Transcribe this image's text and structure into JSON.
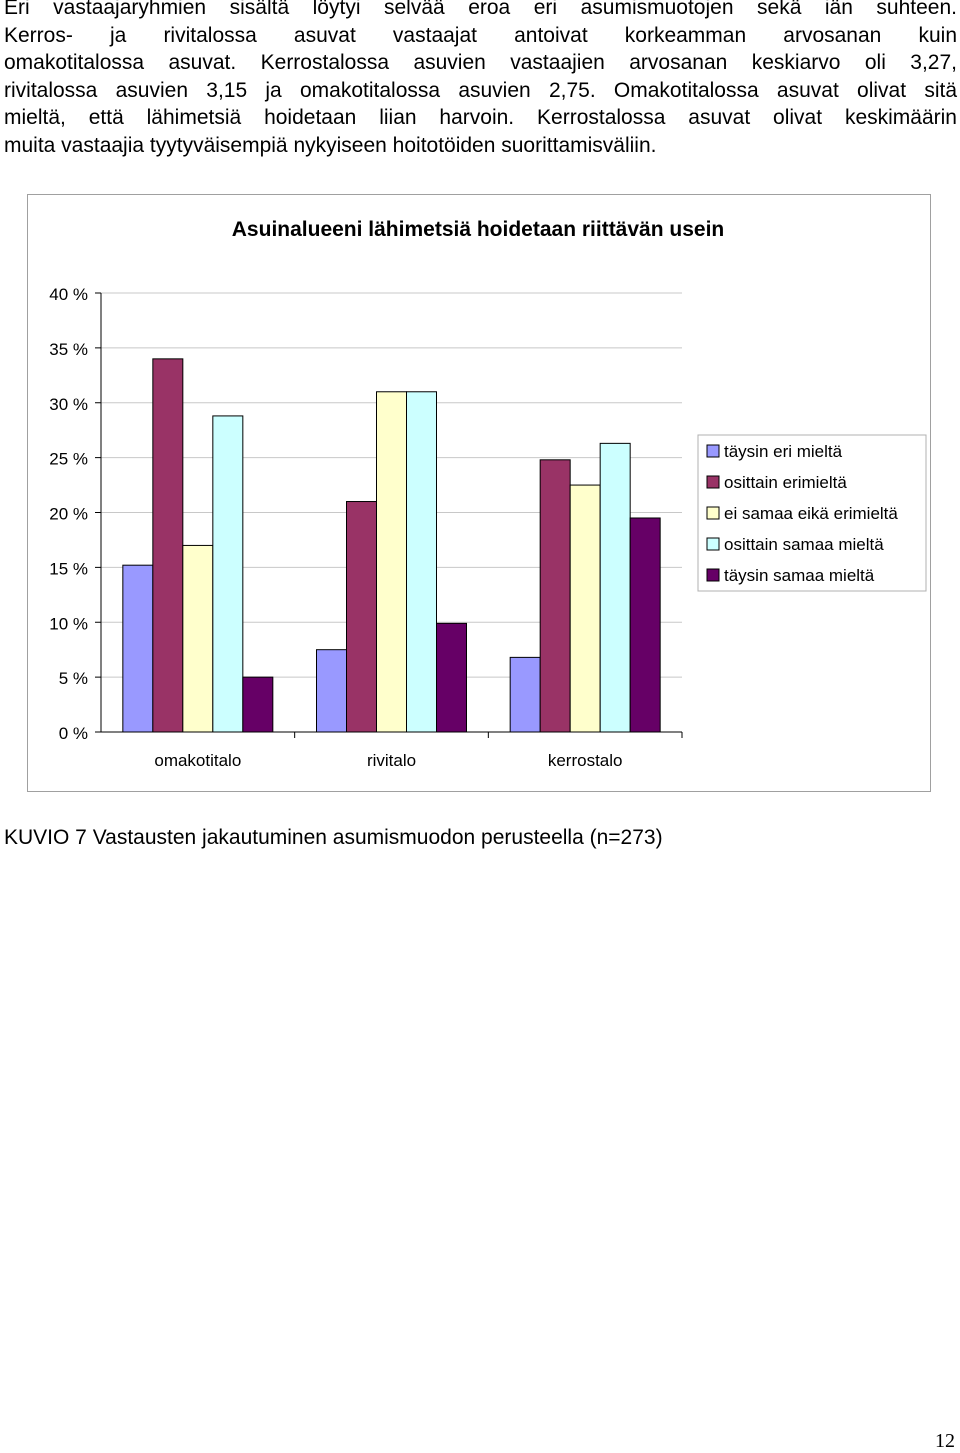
{
  "document": {
    "paragraph_lines": [
      "Eri vastaajaryhmien sisältä löytyi selvää eroa eri asumismuotojen sekä iän suhteen.",
      "Kerros- ja rivitalossa asuvat vastaajat antoivat korkeamman arvosanan kuin",
      "omakotitalossa asuvat. Kerrostalossa asuvien vastaajien arvosanan keskiarvo oli 3,27,",
      "rivitalossa asuvien 3,15 ja omakotitalossa asuvien 2,75. Omakotitalossa asuvat olivat sitä",
      "mieltä, että lähimetsiä hoidetaan liian harvoin. Kerrostalossa asuvat olivat keskimäärin",
      "muita vastaajia tyytyväisempiä nykyiseen hoitotöiden suorittamisväliin."
    ],
    "caption": "KUVIO 7 Vastausten jakautuminen asumismuodon perusteella (n=273)",
    "page_number": "12"
  },
  "chart_data": {
    "type": "bar",
    "title": "Asuinalueeni lähimetsiä hoidetaan riittävän usein",
    "categories": [
      "omakotitalo",
      "rivitalo",
      "kerrostalo"
    ],
    "ylim": [
      0,
      40
    ],
    "yticks": [
      "0 %",
      "5 %",
      "10 %",
      "15 %",
      "20 %",
      "25 %",
      "30 %",
      "35 %",
      "40 %"
    ],
    "grid": true,
    "legend_position": "right",
    "series": [
      {
        "name": "täysin eri mieltä",
        "color": "#9999ff",
        "values": [
          15.2,
          7.5,
          6.8
        ]
      },
      {
        "name": "osittain erimieltä",
        "color": "#993366",
        "values": [
          34,
          21,
          24.8
        ]
      },
      {
        "name": "ei samaa eikä erimieltä",
        "color": "#ffffcc",
        "values": [
          17,
          31,
          22.5
        ]
      },
      {
        "name": "osittain samaa mieltä",
        "color": "#ccffff",
        "values": [
          28.8,
          31,
          26.3
        ]
      },
      {
        "name": "täysin samaa mieltä",
        "color": "#660066",
        "values": [
          5,
          9.9,
          19.5
        ]
      }
    ]
  }
}
